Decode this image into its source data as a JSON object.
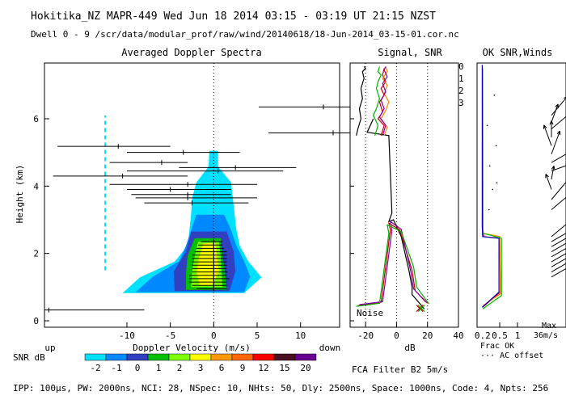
{
  "header": {
    "line1": "Hokitika_NZ  MAPR-449  Wed Jun 18 2014 03:15 - 03:19 UT 21:15 NZST",
    "line2": "Dwell  0 - 9   /scr/data/modular_prof/raw/wind/20140618/18-Jun-2014_03-15-01.cor.nc"
  },
  "footer": {
    "params": "IPP: 100µs,  PW: 2000ns,  NCI:  28,  NSpec: 10, NHts: 50,  Dly: 2500ns,  Space: 1000ns,  Code: 4,  Npts: 256",
    "filter": "FCA Filter B2  5m/s",
    "snr_label": "SNR dB",
    "up_label": "up",
    "down_label": "down"
  },
  "chart_data": [
    {
      "id": "spectra",
      "type": "heatmap",
      "title": "Averaged Doppler Spectra",
      "xlabel": "Doppler Velocity (m/s)",
      "ylabel": "Height (km)",
      "xlim": [
        -19.5,
        14.5
      ],
      "ylim": [
        0,
        7.6
      ],
      "xticks": [
        -10,
        -5,
        0,
        5,
        10
      ],
      "yticks": [
        0,
        2,
        4,
        6
      ],
      "dashed_line_x": -12.5,
      "dashed_line_y": [
        1.5,
        6.1
      ],
      "contours": [
        {
          "snr_index": 0,
          "ybot": 0.82,
          "ytop": 5.05,
          "xl": [
            -10.5,
            -8.5,
            -4.5,
            -3.0,
            -2.8,
            -2.6,
            -2.5,
            -2.0,
            -0.6,
            -0.5
          ],
          "xr": [
            3.5,
            5.5,
            4.0,
            3.0,
            2.6,
            2.4,
            2.2,
            2.0,
            0.5,
            0.5
          ]
        },
        {
          "snr_index": 1,
          "ybot": 0.85,
          "ytop": 3.15,
          "xl": [
            -9.0,
            -7.0,
            -4.0,
            -3.2,
            -2.6,
            -2.0
          ],
          "xr": [
            3.5,
            4.2,
            3.5,
            2.6,
            2.0,
            1.2
          ]
        },
        {
          "snr_index": 2,
          "ybot": 0.88,
          "ytop": 2.65,
          "xl": [
            -4.5,
            -4.6,
            -3.2,
            -2.6
          ],
          "xr": [
            1.8,
            2.5,
            2.3,
            1.5
          ]
        },
        {
          "snr_index": 3,
          "ybot": 0.92,
          "ytop": 2.45,
          "xl": [
            -3.2,
            -3.2,
            -3.0,
            -2.2
          ],
          "xr": [
            1.5,
            1.3,
            1.0,
            0.8
          ]
        },
        {
          "snr_index": 4,
          "ybot": 1.0,
          "ytop": 2.35,
          "xl": [
            -2.6,
            -2.5,
            -2.2,
            -1.8
          ],
          "xr": [
            1.0,
            0.9,
            0.8,
            0.6
          ]
        },
        {
          "snr_index": 5,
          "ybot": 1.05,
          "ytop": 2.3,
          "xl": [
            -1.6,
            -2.0,
            -1.7,
            -1.2
          ],
          "xr": [
            -0.2,
            0.6,
            0.4,
            0.2
          ]
        }
      ],
      "spectral_bars": [
        {
          "h": 0.32,
          "vl": -19.5,
          "vr": -8.0,
          "vc": -19.0
        },
        {
          "h": 0.95,
          "vl": -2.0,
          "vr": 1.5,
          "vc": 0.0
        },
        {
          "h": 1.05,
          "vl": -2.5,
          "vr": 1.5,
          "vc": 0.0
        },
        {
          "h": 1.15,
          "vl": -2.8,
          "vr": 1.5,
          "vc": 0.0
        },
        {
          "h": 1.25,
          "vl": -2.8,
          "vr": 1.8,
          "vc": 0.0
        },
        {
          "h": 1.35,
          "vl": -2.8,
          "vr": 1.5,
          "vc": 0.0
        },
        {
          "h": 1.45,
          "vl": -2.5,
          "vr": 1.6,
          "vc": 0.0
        },
        {
          "h": 1.55,
          "vl": -2.5,
          "vr": 1.5,
          "vc": 0.0
        },
        {
          "h": 1.65,
          "vl": -2.5,
          "vr": 1.5,
          "vc": 0.0
        },
        {
          "h": 1.75,
          "vl": -2.5,
          "vr": 1.5,
          "vc": 0.0
        },
        {
          "h": 1.85,
          "vl": -2.5,
          "vr": 1.5,
          "vc": 0.0
        },
        {
          "h": 1.95,
          "vl": -2.5,
          "vr": 1.5,
          "vc": 0.0
        },
        {
          "h": 2.05,
          "vl": -2.2,
          "vr": 1.5,
          "vc": 0.0
        },
        {
          "h": 2.15,
          "vl": -2.0,
          "vr": 1.2,
          "vc": 0.0
        },
        {
          "h": 2.25,
          "vl": -1.8,
          "vr": 1.0,
          "vc": 0.0
        },
        {
          "h": 2.35,
          "vl": -1.5,
          "vr": 1.0,
          "vc": 0.0
        },
        {
          "h": 3.5,
          "vl": -8.0,
          "vr": 4.0,
          "vc": -2.5
        },
        {
          "h": 3.65,
          "vl": -9.0,
          "vr": 5.0,
          "vc": -3.0
        },
        {
          "h": 3.75,
          "vl": -9.5,
          "vr": 2.0,
          "vc": -3.0
        },
        {
          "h": 3.9,
          "vl": -10.0,
          "vr": 2.0,
          "vc": -5.0
        },
        {
          "h": 4.05,
          "vl": -12.0,
          "vr": 5.0,
          "vc": -3.0
        },
        {
          "h": 4.3,
          "vl": -18.5,
          "vr": -3.0,
          "vc": -10.5
        },
        {
          "h": 4.45,
          "vl": -10.0,
          "vr": 8.0,
          "vc": 0.5
        },
        {
          "h": 4.55,
          "vl": -4.0,
          "vr": 9.5,
          "vc": 2.5
        },
        {
          "h": 4.7,
          "vl": -12.0,
          "vr": -3.0,
          "vc": -6.0
        },
        {
          "h": 5.0,
          "vl": -10.0,
          "vr": 3.0,
          "vc": -3.5
        },
        {
          "h": 5.18,
          "vl": -18.0,
          "vr": -5.0,
          "vc": -11.0
        }
      ]
    },
    {
      "id": "signal",
      "type": "line",
      "title": "Signal, SNR",
      "xlabel": "dB",
      "xlim": [
        -30,
        40
      ],
      "xticks": [
        -20,
        0,
        20,
        40
      ],
      "dotted_x": [
        -20,
        0,
        20
      ],
      "noise_label": "Noise",
      "series": [
        {
          "name": "noise",
          "color": "#000000",
          "x": [
            -15,
            -19,
            -5,
            -3,
            -5,
            -2,
            3,
            8,
            10,
            10,
            18
          ],
          "y": [
            6.0,
            5.6,
            5.5,
            3.2,
            2.95,
            3.0,
            2.5,
            1.5,
            1.0,
            0.78,
            0.35
          ]
        },
        {
          "name": "snr_red",
          "color": "#c00000",
          "x": [
            -25,
            -10,
            -4,
            -5,
            2,
            10,
            12,
            20
          ],
          "y": [
            0.45,
            0.55,
            2.7,
            2.9,
            2.7,
            1.5,
            0.9,
            0.52
          ]
        },
        {
          "name": "snr_purple",
          "color": "#8000a0",
          "x": [
            -24,
            -9,
            -3,
            -4,
            3,
            9,
            11,
            19
          ],
          "y": [
            0.48,
            0.57,
            2.68,
            2.95,
            2.72,
            1.5,
            0.95,
            0.55
          ]
        },
        {
          "name": "snr_green",
          "color": "#00b000",
          "x": [
            -26,
            -11,
            -5,
            -6,
            3,
            11,
            13,
            21
          ],
          "y": [
            0.43,
            0.52,
            2.6,
            2.85,
            2.65,
            1.6,
            1.0,
            0.5
          ]
        },
        {
          "name": "upper_black",
          "color": "#000000",
          "x": [
            -26,
            -25,
            -23,
            -24,
            -22,
            -23,
            -21,
            -22,
            -20,
            -21
          ],
          "y": [
            5.5,
            5.7,
            6.0,
            6.3,
            6.6,
            6.9,
            7.2,
            7.4,
            7.5,
            7.55
          ]
        },
        {
          "name": "upper_red",
          "color": "#c00000",
          "x": [
            -10,
            -8,
            -12,
            -9,
            -11,
            -8,
            -10,
            -7,
            -9,
            -8
          ],
          "y": [
            5.5,
            5.8,
            6.0,
            6.2,
            6.5,
            6.7,
            6.9,
            7.1,
            7.3,
            7.5
          ]
        },
        {
          "name": "upper_green",
          "color": "#00b000",
          "x": [
            -14,
            -12,
            -15,
            -13,
            -11,
            -13,
            -12,
            -10,
            -12,
            -11
          ],
          "y": [
            5.5,
            5.8,
            6.1,
            6.3,
            6.6,
            6.9,
            7.1,
            7.3,
            7.4,
            7.55
          ]
        },
        {
          "name": "upper_orange",
          "color": "#ff8000",
          "x": [
            -8,
            -6,
            -10,
            -7,
            -5,
            -8,
            -6,
            -9,
            -6,
            -7
          ],
          "y": [
            5.5,
            5.75,
            6.0,
            6.25,
            6.5,
            6.75,
            7.0,
            7.2,
            7.4,
            7.55
          ]
        },
        {
          "name": "upper_purple",
          "color": "#8000a0",
          "x": [
            -9,
            -7,
            -11,
            -8,
            -10,
            -7,
            -9,
            -6,
            -8,
            -7
          ],
          "y": [
            5.5,
            5.8,
            6.05,
            6.3,
            6.55,
            6.8,
            7.05,
            7.25,
            7.45,
            7.55
          ]
        }
      ],
      "markers": [
        {
          "type": "x",
          "x": 15,
          "y": 0.37,
          "color": "#c00000"
        },
        {
          "type": "x",
          "x": 16,
          "y": 0.37,
          "color": "#00b000"
        }
      ],
      "wind_bars": [
        {
          "h": 6.35,
          "left": -30,
          "right": 1000
        },
        {
          "h": 5.58,
          "left": -40,
          "right": 1000
        }
      ]
    },
    {
      "id": "ok_snr",
      "type": "line",
      "title": "OK SNR,Winds",
      "xlabel": "Frac OK",
      "xticks": [
        0.5,
        1
      ],
      "xtick_labels": [
        "0.5",
        "1"
      ],
      "extra_tick_label": "0.2",
      "legend": [
        {
          "label": "0",
          "color": "#ff0000"
        },
        {
          "label": "1",
          "color": "#ff8000"
        },
        {
          "label": "2",
          "color": "#00c000"
        },
        {
          "label": "3",
          "color": "#0000c0"
        }
      ],
      "frac_ok_series": [
        {
          "color": "#ff0000",
          "x": [
            0.02,
            0.02,
            0.05,
            0.5,
            0.52,
            0.02
          ],
          "y": [
            7.5,
            2.8,
            2.5,
            2.45,
            0.85,
            0.4
          ]
        },
        {
          "color": "#ff8000",
          "x": [
            0.02,
            0.03,
            0.5,
            0.52,
            0.03
          ],
          "y": [
            7.5,
            2.6,
            2.5,
            0.8,
            0.45
          ]
        },
        {
          "color": "#00c000",
          "x": [
            0.02,
            0.03,
            0.55,
            0.55,
            0.02
          ],
          "y": [
            7.5,
            2.6,
            2.45,
            0.75,
            0.35
          ]
        },
        {
          "color": "#0000c0",
          "x": [
            0.01,
            0.01,
            0.02,
            0.48,
            0.48,
            0.01
          ],
          "y": [
            7.6,
            2.8,
            2.5,
            2.45,
            0.85,
            0.4
          ]
        }
      ],
      "ac_offset_label": "AC offset",
      "max_label": "Max",
      "max_value": "36m/s",
      "wind_vectors": [
        {
          "h": 6.1,
          "dir": 220,
          "len": 0.9
        },
        {
          "h": 5.9,
          "dir": 200,
          "len": 0.7
        },
        {
          "h": 5.7,
          "dir": 230,
          "len": 1.0
        },
        {
          "h": 5.45,
          "dir": 180,
          "len": 0.6
        },
        {
          "h": 5.2,
          "dir": 160,
          "len": 0.8
        },
        {
          "h": 4.95,
          "dir": 200,
          "len": 0.9
        },
        {
          "h": 4.7,
          "dir": 240,
          "len": 1.0
        },
        {
          "h": 4.45,
          "dir": 250,
          "len": 0.7
        },
        {
          "h": 4.2,
          "dir": 190,
          "len": 0.5
        },
        {
          "h": 3.9,
          "dir": 160,
          "len": 0.6
        },
        {
          "h": 3.6,
          "dir": 220,
          "len": 1.0
        },
        {
          "h": 3.3,
          "dir": 230,
          "len": 0.9
        },
        {
          "h": 2.5,
          "dir": 230,
          "len": 1.0
        },
        {
          "h": 2.35,
          "dir": 240,
          "len": 1.0
        },
        {
          "h": 2.2,
          "dir": 240,
          "len": 1.0
        },
        {
          "h": 2.05,
          "dir": 240,
          "len": 1.0
        },
        {
          "h": 1.9,
          "dir": 240,
          "len": 0.95
        },
        {
          "h": 1.75,
          "dir": 240,
          "len": 0.95
        },
        {
          "h": 1.6,
          "dir": 240,
          "len": 0.9
        },
        {
          "h": 1.45,
          "dir": 240,
          "len": 0.9
        },
        {
          "h": 1.3,
          "dir": 240,
          "len": 0.85
        }
      ]
    },
    {
      "id": "snr_colorbar",
      "type": "table",
      "title": "SNR dB",
      "labels": [
        "-2",
        "-1",
        "0",
        "1",
        "2",
        "3",
        "6",
        "9",
        "12",
        "15",
        "20"
      ],
      "colors": [
        "#00e0ff",
        "#0088ff",
        "#3040c0",
        "#00c000",
        "#80ff00",
        "#ffff00",
        "#ff9900",
        "#ff6600",
        "#ff0000",
        "#4a1020",
        "#6a0090"
      ]
    }
  ]
}
